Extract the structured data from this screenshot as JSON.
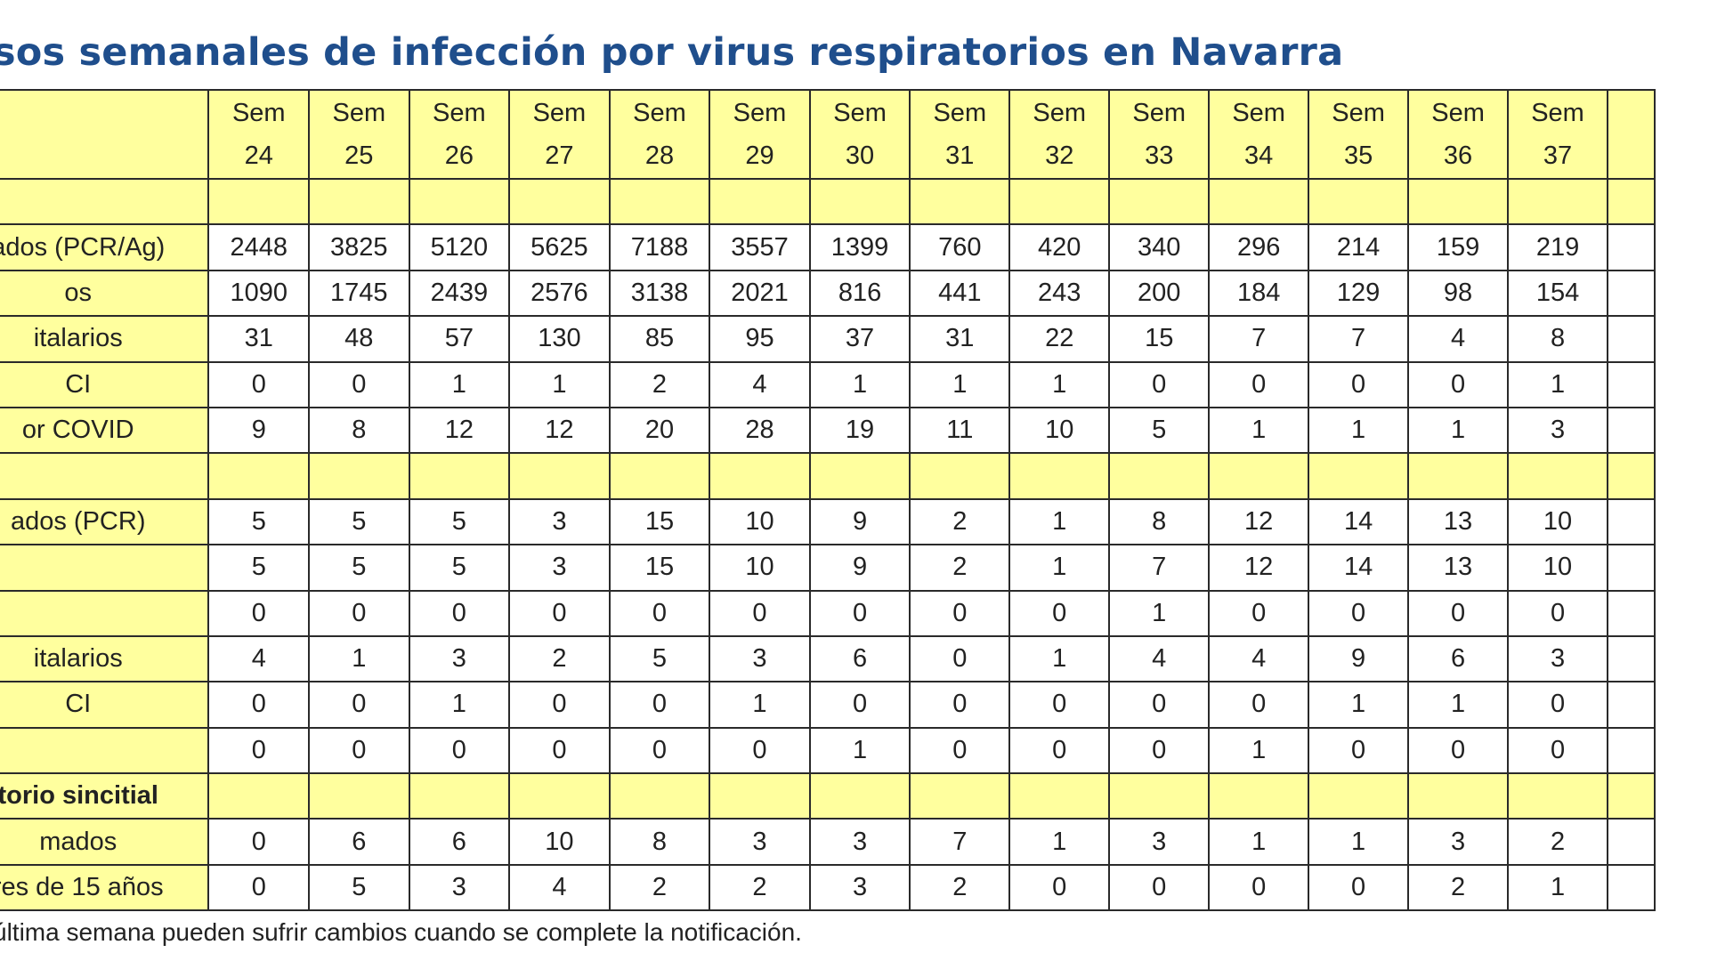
{
  "title": "sos semanales de infección por virus respiratorios en Navarra",
  "weeks": [
    {
      "line1": "Sem",
      "line2": "24"
    },
    {
      "line1": "Sem",
      "line2": "25"
    },
    {
      "line1": "Sem",
      "line2": "26"
    },
    {
      "line1": "Sem",
      "line2": "27"
    },
    {
      "line1": "Sem",
      "line2": "28"
    },
    {
      "line1": "Sem",
      "line2": "29"
    },
    {
      "line1": "Sem",
      "line2": "30"
    },
    {
      "line1": "Sem",
      "line2": "31"
    },
    {
      "line1": "Sem",
      "line2": "32"
    },
    {
      "line1": "Sem",
      "line2": "33"
    },
    {
      "line1": "Sem",
      "line2": "34"
    },
    {
      "line1": "Sem",
      "line2": "35"
    },
    {
      "line1": "Sem",
      "line2": "36"
    },
    {
      "line1": "Sem",
      "line2": "37"
    }
  ],
  "rows": [
    {
      "label": "",
      "values": null
    },
    {
      "label": "ados (PCR/Ag)",
      "values": [
        "2448",
        "3825",
        "5120",
        "5625",
        "7188",
        "3557",
        "1399",
        "760",
        "420",
        "340",
        "296",
        "214",
        "159",
        "219"
      ]
    },
    {
      "label": "os",
      "values": [
        "1090",
        "1745",
        "2439",
        "2576",
        "3138",
        "2021",
        "816",
        "441",
        "243",
        "200",
        "184",
        "129",
        "98",
        "154"
      ]
    },
    {
      "label": "italarios",
      "values": [
        "31",
        "48",
        "57",
        "130",
        "85",
        "95",
        "37",
        "31",
        "22",
        "15",
        "7",
        "7",
        "4",
        "8"
      ]
    },
    {
      "label": "CI",
      "values": [
        "0",
        "0",
        "1",
        "1",
        "2",
        "4",
        "1",
        "1",
        "1",
        "0",
        "0",
        "0",
        "0",
        "1"
      ]
    },
    {
      "label": "or COVID",
      "values": [
        "9",
        "8",
        "12",
        "12",
        "20",
        "28",
        "19",
        "11",
        "10",
        "5",
        "1",
        "1",
        "1",
        "3"
      ]
    },
    {
      "label": "",
      "values": null
    },
    {
      "label": "ados (PCR)",
      "values": [
        "5",
        "5",
        "5",
        "3",
        "15",
        "10",
        "9",
        "2",
        "1",
        "8",
        "12",
        "14",
        "13",
        "10"
      ]
    },
    {
      "label": "",
      "values": [
        "5",
        "5",
        "5",
        "3",
        "15",
        "10",
        "9",
        "2",
        "1",
        "7",
        "12",
        "14",
        "13",
        "10"
      ]
    },
    {
      "label": "",
      "values": [
        "0",
        "0",
        "0",
        "0",
        "0",
        "0",
        "0",
        "0",
        "0",
        "1",
        "0",
        "0",
        "0",
        "0"
      ]
    },
    {
      "label": "italarios",
      "values": [
        "4",
        "1",
        "3",
        "2",
        "5",
        "3",
        "6",
        "0",
        "1",
        "4",
        "4",
        "9",
        "6",
        "3"
      ]
    },
    {
      "label": "CI",
      "values": [
        "0",
        "0",
        "1",
        "0",
        "0",
        "1",
        "0",
        "0",
        "0",
        "0",
        "0",
        "1",
        "1",
        "0"
      ]
    },
    {
      "label": "",
      "values": [
        "0",
        "0",
        "0",
        "0",
        "0",
        "0",
        "1",
        "0",
        "0",
        "0",
        "1",
        "0",
        "0",
        "0"
      ]
    },
    {
      "label": "torio sincitial",
      "values": null,
      "bold": true
    },
    {
      "label": "mados",
      "values": [
        "0",
        "6",
        "6",
        "10",
        "8",
        "3",
        "3",
        "7",
        "1",
        "3",
        "1",
        "1",
        "3",
        "2"
      ]
    },
    {
      "label": "res de 15 años",
      "values": [
        "0",
        "5",
        "3",
        "4",
        "2",
        "2",
        "3",
        "2",
        "0",
        "0",
        "0",
        "0",
        "2",
        "1"
      ]
    }
  ],
  "footnote": "última semana pueden sufrir cambios cuando se complete la notificación.",
  "colors": {
    "header_fill": "#ffff9e",
    "title": "#1f4e8c",
    "border": "#2a2a2a"
  }
}
